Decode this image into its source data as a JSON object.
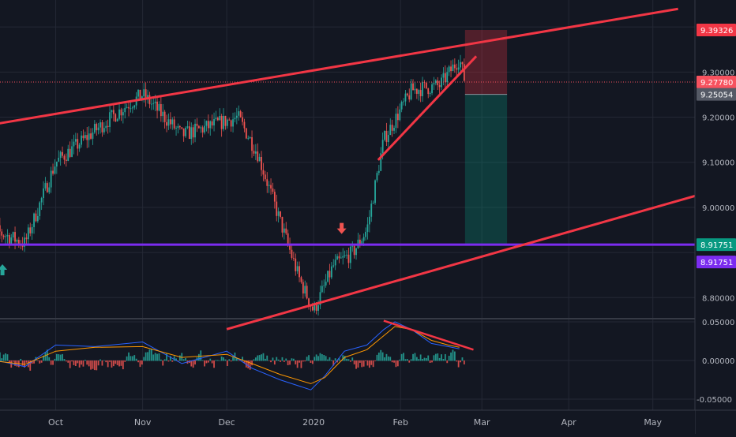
{
  "chart_data": [
    {
      "type": "candlestick",
      "series_type": "candles",
      "xaxis_ticks": [
        "Oct",
        "Nov",
        "Dec",
        "2020",
        "Feb",
        "Mar",
        "Apr",
        "May"
      ],
      "ylim": [
        8.73,
        9.44
      ],
      "yaxis_ticks": [
        "9.30000",
        "9.20000",
        "9.10000",
        "9.00000",
        "8.80000"
      ],
      "tick_values": [
        9.3,
        9.2,
        9.1,
        9.0,
        8.8
      ],
      "price_tags": [
        {
          "label": "9.39326",
          "value": 9.39326,
          "color": "#f23645"
        },
        {
          "label": "9.27780",
          "value": 9.2778,
          "color": "#f7525f"
        },
        {
          "label": "9.25054",
          "value": 9.25054,
          "color": "#555a66"
        },
        {
          "label": "8.91751",
          "value": 8.91751,
          "color": "#089981"
        },
        {
          "label": "8.91751",
          "value": 8.91751,
          "color": "#7b2cf0"
        }
      ],
      "horizontal_level": 8.91751,
      "last_price": 9.2778,
      "trade_box": {
        "entry": 9.25054,
        "stop": 9.39326,
        "target": 8.91751,
        "start": "2020-02-24",
        "end": "2020-03-10"
      },
      "trendlines": [
        {
          "name": "upper channel",
          "from": [
            "2019-09-05",
            9.18
          ],
          "to": [
            "2020-05-10",
            9.44
          ]
        },
        {
          "name": "lower channel",
          "from": [
            "2019-12-01",
            8.73
          ],
          "to": [
            "2020-05-30",
            9.05
          ]
        },
        {
          "name": "rising wedge",
          "from": [
            "2020-01-24",
            9.105
          ],
          "to": [
            "2020-02-28",
            9.335
          ]
        }
      ],
      "arrows": [
        {
          "direction": "up",
          "date": "2019-09-12",
          "value": 8.86,
          "color": "#26a69a"
        },
        {
          "direction": "down",
          "date": "2020-01-11",
          "value": 8.955,
          "color": "#ef5350"
        }
      ],
      "key_points": [
        {
          "date": "2019-09-05",
          "value": 8.96
        },
        {
          "date": "2019-09-20",
          "value": 8.92
        },
        {
          "date": "2019-10-01",
          "value": 9.1
        },
        {
          "date": "2019-10-25",
          "value": 9.22
        },
        {
          "date": "2019-11-01",
          "value": 9.25
        },
        {
          "date": "2019-11-15",
          "value": 9.16
        },
        {
          "date": "2019-12-05",
          "value": 9.2
        },
        {
          "date": "2019-12-12",
          "value": 9.12
        },
        {
          "date": "2019-12-20",
          "value": 8.97
        },
        {
          "date": "2019-12-27",
          "value": 8.84
        },
        {
          "date": "2020-01-01",
          "value": 8.77
        },
        {
          "date": "2020-01-08",
          "value": 8.87
        },
        {
          "date": "2020-01-15",
          "value": 8.9
        },
        {
          "date": "2020-01-20",
          "value": 8.95
        },
        {
          "date": "2020-01-26",
          "value": 9.15
        },
        {
          "date": "2020-02-05",
          "value": 9.26
        },
        {
          "date": "2020-02-15",
          "value": 9.27
        },
        {
          "date": "2020-02-22",
          "value": 9.33
        },
        {
          "date": "2020-02-24",
          "value": 9.278
        }
      ]
    },
    {
      "type": "line",
      "name": "oscillator",
      "yaxis_ticks": [
        "0.05000",
        "0.00000",
        "-0.05000"
      ],
      "tick_values": [
        0.05,
        0.0,
        -0.05
      ],
      "ylim": [
        -0.056,
        0.056
      ],
      "divergence_line": {
        "from": [
          "2020-01-26",
          0.0515
        ],
        "to": [
          "2020-02-27",
          0.014
        ]
      },
      "series": [
        {
          "color": "#2962ff",
          "points": [
            [
              "2019-09-05",
              0.004
            ],
            [
              "2019-09-20",
              -0.008
            ],
            [
              "2019-10-01",
              0.02
            ],
            [
              "2019-10-15",
              0.018
            ],
            [
              "2019-11-01",
              0.024
            ],
            [
              "2019-11-15",
              -0.004
            ],
            [
              "2019-12-01",
              0.012
            ],
            [
              "2019-12-10",
              -0.01
            ],
            [
              "2019-12-20",
              -0.025
            ],
            [
              "2019-12-31",
              -0.038
            ],
            [
              "2020-01-05",
              -0.02
            ],
            [
              "2020-01-12",
              0.012
            ],
            [
              "2020-01-20",
              0.02
            ],
            [
              "2020-01-26",
              0.04
            ],
            [
              "2020-01-30",
              0.05
            ],
            [
              "2020-02-05",
              0.04
            ],
            [
              "2020-02-12",
              0.022
            ],
            [
              "2020-02-18",
              0.018
            ],
            [
              "2020-02-22",
              0.015
            ]
          ]
        },
        {
          "color": "#ff9800",
          "points": [
            [
              "2019-09-05",
              0.001
            ],
            [
              "2019-09-20",
              -0.005
            ],
            [
              "2019-10-01",
              0.012
            ],
            [
              "2019-10-15",
              0.017
            ],
            [
              "2019-11-01",
              0.018
            ],
            [
              "2019-11-15",
              0.004
            ],
            [
              "2019-12-01",
              0.008
            ],
            [
              "2019-12-10",
              -0.004
            ],
            [
              "2019-12-20",
              -0.018
            ],
            [
              "2019-12-31",
              -0.03
            ],
            [
              "2020-01-05",
              -0.022
            ],
            [
              "2020-01-12",
              0.004
            ],
            [
              "2020-01-20",
              0.014
            ],
            [
              "2020-01-26",
              0.032
            ],
            [
              "2020-01-30",
              0.044
            ],
            [
              "2020-02-05",
              0.04
            ],
            [
              "2020-02-12",
              0.026
            ],
            [
              "2020-02-18",
              0.02
            ],
            [
              "2020-02-22",
              0.017
            ]
          ]
        }
      ]
    }
  ]
}
